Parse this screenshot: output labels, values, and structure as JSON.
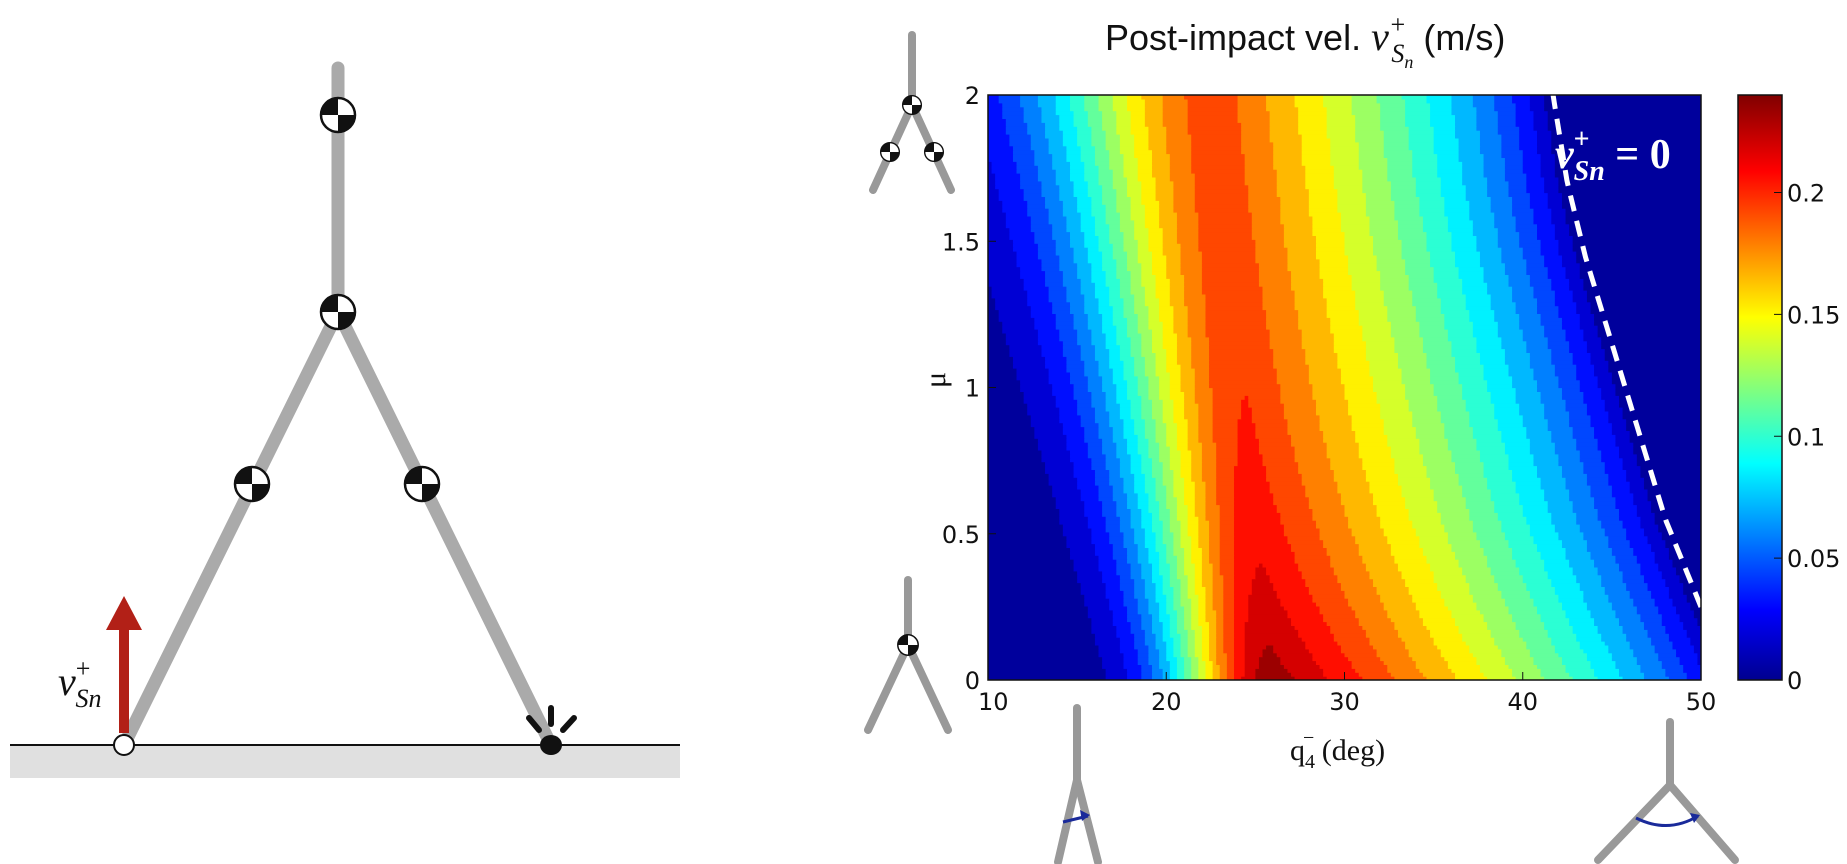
{
  "title": {
    "prefix": "Post-impact vel. ",
    "symbol": "v",
    "superscript": "+",
    "subscript": "S",
    "subscript_sub": "n",
    "units": " (m/s)"
  },
  "left_diagram": {
    "velocity_label": {
      "symbol": "v",
      "superscript": "+",
      "subscript": "Sn"
    },
    "arrow_color": "#b22017",
    "limb_color": "#aaaaaa",
    "ground_color": "#e0e0e0"
  },
  "plot_annotation": {
    "symbol": "v",
    "superscript": "+",
    "subscript": "Sn",
    "equals": " = 0"
  },
  "chart_data": {
    "type": "heatmap",
    "variant": "filled-contour",
    "title": "Post-impact vel. v+ Sn (m/s)",
    "xlabel": {
      "base": "q",
      "sub": "4",
      "sup": "−",
      "units": " (deg)"
    },
    "ylabel": "μ",
    "xlim": [
      10,
      50
    ],
    "ylim": [
      0,
      2
    ],
    "x_ticks": [
      "10",
      "20",
      "30",
      "40",
      "50"
    ],
    "y_ticks": [
      "0",
      "0.5",
      "1",
      "1.5",
      "2"
    ],
    "colorbar": {
      "range": [
        0,
        0.24
      ],
      "ticks": [
        "0",
        "0.05",
        "0.1",
        "0.15",
        "0.2"
      ],
      "colormap": "jet",
      "levels": 18
    },
    "peak": {
      "x": 26,
      "y": 0,
      "value": 0.235
    },
    "zero_boundary": {
      "name": "v+ Sn = 0",
      "style": "white dashed",
      "points": [
        [
          50,
          0.25
        ],
        [
          48,
          0.55
        ],
        [
          46.5,
          0.85
        ],
        [
          45,
          1.15
        ],
        [
          43.5,
          1.45
        ],
        [
          42.5,
          1.7
        ],
        [
          41.7,
          2.0
        ]
      ]
    },
    "grid": false
  },
  "axis_glyphs": {
    "top_left": "balls",
    "bottom_left": "balls",
    "bottom_x_left": "arrow",
    "bottom_x_right": "arc-arrow"
  }
}
